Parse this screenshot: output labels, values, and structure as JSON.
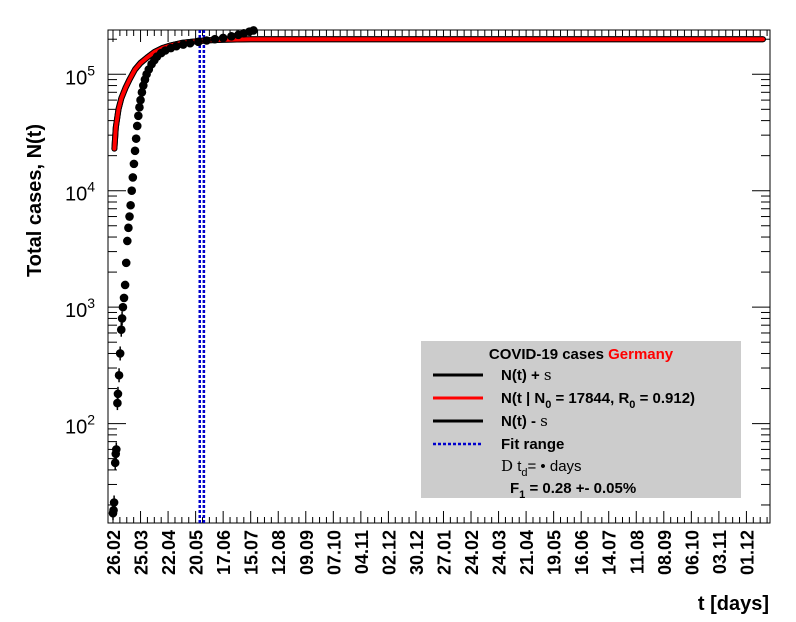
{
  "chart_data": {
    "type": "scatter",
    "title": "",
    "xlabel": "t [days]",
    "ylabel": "Total cases, N(t)",
    "yscale": "log",
    "ylim": [
      14,
      240000
    ],
    "grid": false,
    "xticks": [
      "26.02",
      "25.03",
      "22.04",
      "20.05",
      "17.06",
      "15.07",
      "12.08",
      "09.09",
      "07.10",
      "04.11",
      "02.12",
      "30.12",
      "27.01",
      "24.02",
      "24.03",
      "21.04",
      "19.05",
      "16.06",
      "14.07",
      "11.08",
      "08.09",
      "06.10",
      "03.11",
      "01.12"
    ],
    "yticks": [
      {
        "base": "10",
        "exp": "2",
        "value": 100
      },
      {
        "base": "10",
        "exp": "3",
        "value": 1000
      },
      {
        "base": "10",
        "exp": "4",
        "value": 10000
      },
      {
        "base": "10",
        "exp": "5",
        "value": 100000
      }
    ],
    "x_unit_note": "x values are tick index (0 = 26.02, each tick = 28 days)",
    "data_points": [
      {
        "x": 0.0,
        "y": 17
      },
      {
        "x": 0.02,
        "y": 18
      },
      {
        "x": 0.04,
        "y": 21
      },
      {
        "x": 0.08,
        "y": 46
      },
      {
        "x": 0.1,
        "y": 55
      },
      {
        "x": 0.12,
        "y": 60
      },
      {
        "x": 0.16,
        "y": 150
      },
      {
        "x": 0.18,
        "y": 180
      },
      {
        "x": 0.22,
        "y": 260
      },
      {
        "x": 0.26,
        "y": 400
      },
      {
        "x": 0.3,
        "y": 640
      },
      {
        "x": 0.33,
        "y": 800
      },
      {
        "x": 0.36,
        "y": 1000
      },
      {
        "x": 0.4,
        "y": 1200
      },
      {
        "x": 0.44,
        "y": 1550
      },
      {
        "x": 0.48,
        "y": 2400
      },
      {
        "x": 0.52,
        "y": 3700
      },
      {
        "x": 0.56,
        "y": 4800
      },
      {
        "x": 0.6,
        "y": 6000
      },
      {
        "x": 0.64,
        "y": 7500
      },
      {
        "x": 0.68,
        "y": 10000
      },
      {
        "x": 0.72,
        "y": 13000
      },
      {
        "x": 0.76,
        "y": 17000
      },
      {
        "x": 0.8,
        "y": 22000
      },
      {
        "x": 0.84,
        "y": 28000
      },
      {
        "x": 0.88,
        "y": 36000
      },
      {
        "x": 0.92,
        "y": 44000
      },
      {
        "x": 0.96,
        "y": 52000
      },
      {
        "x": 1.0,
        "y": 60000
      },
      {
        "x": 1.05,
        "y": 70000
      },
      {
        "x": 1.1,
        "y": 80000
      },
      {
        "x": 1.16,
        "y": 90000
      },
      {
        "x": 1.22,
        "y": 100000
      },
      {
        "x": 1.3,
        "y": 110000
      },
      {
        "x": 1.4,
        "y": 122000
      },
      {
        "x": 1.5,
        "y": 132000
      },
      {
        "x": 1.6,
        "y": 142000
      },
      {
        "x": 1.75,
        "y": 152000
      },
      {
        "x": 1.9,
        "y": 160000
      },
      {
        "x": 2.1,
        "y": 168000
      },
      {
        "x": 2.3,
        "y": 174000
      },
      {
        "x": 2.55,
        "y": 180000
      },
      {
        "x": 2.8,
        "y": 185000
      },
      {
        "x": 3.1,
        "y": 190000
      },
      {
        "x": 3.4,
        "y": 195000
      },
      {
        "x": 3.7,
        "y": 200000
      },
      {
        "x": 4.0,
        "y": 205000
      },
      {
        "x": 4.3,
        "y": 212000
      },
      {
        "x": 4.55,
        "y": 218000
      },
      {
        "x": 4.75,
        "y": 225000
      },
      {
        "x": 4.95,
        "y": 232000
      },
      {
        "x": 5.1,
        "y": 238000
      }
    ],
    "series": [
      {
        "name": "N(t) + s",
        "color": "#000000",
        "x": [
          0.05,
          0.1,
          0.2,
          0.3,
          0.45,
          0.6,
          0.8,
          1.0,
          1.25,
          1.5,
          1.8,
          2.1,
          2.5,
          3.0,
          3.5,
          4.0,
          5.0,
          8.0,
          12.0,
          16.0,
          20.0,
          23.6
        ],
        "y": [
          23000,
          35000,
          50000,
          62000,
          76000,
          90000,
          110000,
          125000,
          140000,
          155000,
          168000,
          177000,
          186000,
          192000,
          196000,
          198000,
          199500,
          200000,
          200000,
          200000,
          200000,
          200000
        ]
      },
      {
        "name": "N(t | N_0 = 17844, R_0 =  0.912)",
        "color": "#ff0000",
        "x": [
          0.05,
          0.1,
          0.2,
          0.3,
          0.45,
          0.6,
          0.8,
          1.0,
          1.25,
          1.5,
          1.8,
          2.1,
          2.5,
          3.0,
          3.5,
          4.0,
          5.0,
          8.0,
          12.0,
          16.0,
          20.0,
          23.6
        ],
        "y": [
          23000,
          35000,
          50000,
          62000,
          76000,
          90000,
          110000,
          125000,
          140000,
          155000,
          168000,
          177000,
          186000,
          192000,
          196000,
          198000,
          199500,
          200000,
          200000,
          200000,
          200000,
          200000
        ]
      },
      {
        "name": "N(t) - s",
        "color": "#000000",
        "x": [
          0.05,
          0.1,
          0.2,
          0.3,
          0.45,
          0.6,
          0.8,
          1.0,
          1.25,
          1.5,
          1.8,
          2.1,
          2.5,
          3.0,
          3.5,
          4.0,
          5.0,
          8.0,
          12.0,
          16.0,
          20.0,
          23.6
        ],
        "y": [
          23000,
          35000,
          50000,
          62000,
          76000,
          90000,
          110000,
          125000,
          140000,
          155000,
          168000,
          177000,
          186000,
          192000,
          196000,
          198000,
          199500,
          200000,
          200000,
          200000,
          200000,
          200000
        ]
      }
    ],
    "fit_range": {
      "name": "Fit range",
      "color": "#0000cc",
      "x": [
        3.15,
        3.3
      ]
    },
    "legend": {
      "placement": "bottom-right",
      "title_prefix": "COVID-19 cases",
      "title_country": "Germany",
      "title_country_color": "#ff0000",
      "entries": [
        {
          "text_a": "N(t) + ",
          "sym": "s",
          "text_b": ""
        },
        {
          "text_a": "N(t | N",
          "sub0": "0",
          "text_b": " = 17844, R",
          "sub1": "0",
          "text_c": " =  0.912)"
        },
        {
          "text_a": "N(t) - ",
          "sym": "s",
          "text_b": ""
        },
        {
          "text_a": "Fit range"
        }
      ],
      "td_line": {
        "sym": "D",
        "t": " t",
        "sub": "d",
        "rest": "=  • days"
      },
      "f1_line": {
        "f": "F",
        "sub": "1",
        "rest": " =  0.28 +- 0.05%"
      }
    }
  }
}
